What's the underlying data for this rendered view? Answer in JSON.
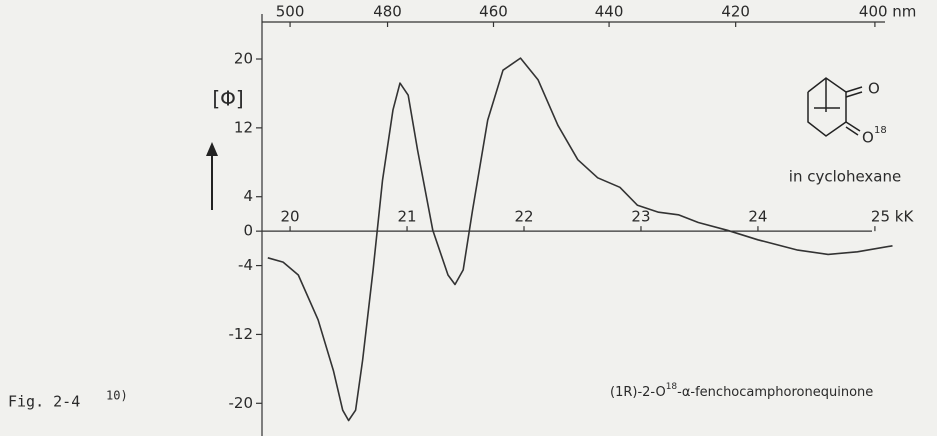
{
  "chart_data": {
    "type": "line",
    "y_label": "[Φ]",
    "annotation": "in cyclohexane",
    "compound": {
      "prefix": "(1R)-2-O",
      "sup": "18",
      "suffix": "-α-fenchocamphoronequinone"
    },
    "structure_labels": [
      "O",
      "O",
      "18"
    ],
    "figure_label": {
      "text": "Fig. 2-4",
      "ref": "10)"
    },
    "x": [
      19.81,
      19.94,
      20.07,
      20.24,
      20.37,
      20.45,
      20.5,
      20.56,
      20.62,
      20.71,
      20.79,
      20.88,
      20.94,
      21.01,
      21.09,
      21.22,
      21.35,
      21.41,
      21.48,
      21.56,
      21.69,
      21.82,
      21.97,
      22.12,
      22.29,
      22.46,
      22.63,
      22.82,
      22.97,
      23.15,
      23.32,
      23.49,
      23.74,
      24.0,
      24.34,
      24.6,
      24.85,
      25.15
    ],
    "values": [
      -3.1,
      -3.6,
      -5.1,
      -10.3,
      -16.2,
      -20.8,
      -22,
      -20.8,
      -15,
      -4.5,
      5.9,
      14.1,
      17.2,
      15.8,
      9.4,
      0.1,
      -5.1,
      -6.2,
      -4.5,
      2.4,
      12.9,
      18.7,
      20.1,
      17.6,
      12.3,
      8.3,
      6.2,
      5.1,
      3.0,
      2.2,
      1.9,
      1.0,
      0.1,
      -1.0,
      -2.2,
      -2.7,
      -2.4,
      -1.7
    ],
    "color": "#333333",
    "xlim": [
      19.76,
      25.3
    ],
    "xticks": [
      20,
      21,
      22,
      23,
      24,
      {
        "value": 25,
        "label": "25 kK"
      }
    ],
    "x2ticks": [
      500,
      480,
      460,
      440,
      420,
      {
        "value": 400,
        "label": "400 nm"
      }
    ],
    "ylim": [
      -23.8,
      24.3
    ],
    "yticks": [
      20,
      12,
      4,
      0,
      -4,
      -12,
      -20
    ]
  }
}
